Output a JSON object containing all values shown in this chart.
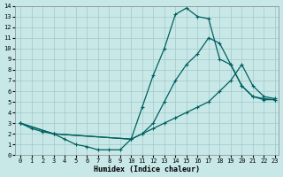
{
  "xlabel": "Humidex (Indice chaleur)",
  "xlim": [
    -0.5,
    23.3
  ],
  "ylim": [
    0,
    14
  ],
  "xticks": [
    0,
    1,
    2,
    3,
    4,
    5,
    6,
    7,
    8,
    9,
    10,
    11,
    12,
    13,
    14,
    15,
    16,
    17,
    18,
    19,
    20,
    21,
    22,
    23
  ],
  "yticks": [
    0,
    1,
    2,
    3,
    4,
    5,
    6,
    7,
    8,
    9,
    10,
    11,
    12,
    13,
    14
  ],
  "background_color": "#c8e8e8",
  "grid_color": "#a0c8c8",
  "line_color": "#006060",
  "line1_x": [
    0,
    1,
    2,
    3,
    4,
    5,
    6,
    7,
    8,
    9,
    10,
    11,
    12,
    13,
    14,
    15,
    16,
    17,
    18,
    19,
    20,
    21,
    22,
    23
  ],
  "line1_y": [
    3,
    2.5,
    2.2,
    2,
    1.5,
    1,
    0.8,
    0.5,
    0.5,
    0.5,
    1.5,
    4.5,
    7.5,
    10,
    13.2,
    13.8,
    13,
    12.8,
    9,
    8.5,
    6.5,
    5.5,
    5.2,
    5.2
  ],
  "line2_x": [
    0,
    3,
    10,
    11,
    12,
    13,
    14,
    15,
    16,
    17,
    18,
    19,
    20,
    21,
    22,
    23
  ],
  "line2_y": [
    3,
    2,
    1.5,
    2,
    2.5,
    3,
    3.5,
    4,
    4.5,
    5,
    6,
    7,
    8.5,
    6.5,
    5.5,
    5.3
  ],
  "line3_x": [
    0,
    3,
    10,
    11,
    12,
    13,
    14,
    15,
    16,
    17,
    18,
    19,
    20,
    21,
    22,
    23
  ],
  "line3_y": [
    3,
    2,
    1.5,
    2,
    3,
    5,
    7,
    8.5,
    9.5,
    11,
    10.5,
    8.5,
    6.5,
    5.5,
    5.3,
    5.2
  ]
}
